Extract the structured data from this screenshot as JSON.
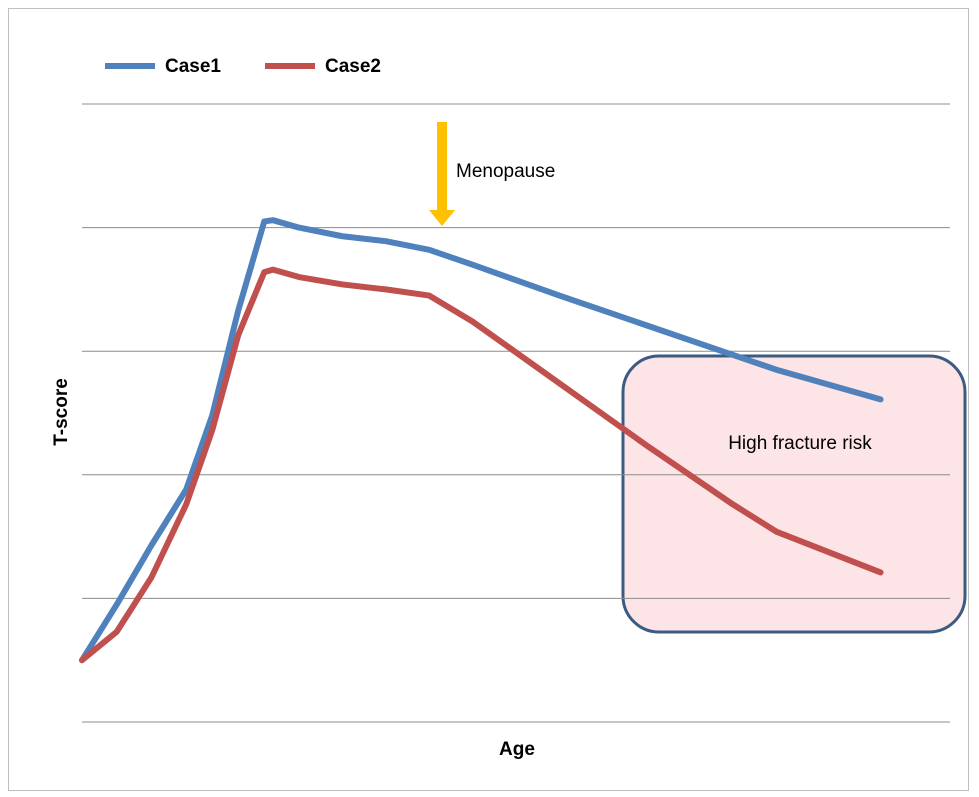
{
  "chart_data": {
    "type": "line",
    "xlabel": "Age",
    "ylabel": "T-score",
    "x": [
      0,
      0.4,
      0.8,
      1.2,
      1.5,
      1.8,
      2.1,
      2.2,
      2.5,
      3,
      3.5,
      4,
      4.5,
      5.5,
      6.5,
      7.5,
      8,
      9.2
    ],
    "series": [
      {
        "name": "Case1",
        "color": "#4f81bd",
        "values": [
          0.5,
          0.95,
          1.43,
          1.88,
          2.48,
          3.33,
          4.05,
          4.06,
          4.0,
          3.93,
          3.89,
          3.82,
          3.7,
          3.45,
          3.21,
          2.97,
          2.85,
          2.61
        ]
      },
      {
        "name": "Case2",
        "color": "#c0504d",
        "values": [
          0.5,
          0.73,
          1.17,
          1.76,
          2.36,
          3.13,
          3.64,
          3.66,
          3.6,
          3.54,
          3.5,
          3.45,
          3.24,
          2.74,
          2.24,
          1.76,
          1.54,
          1.21
        ]
      }
    ],
    "annotations": [
      "Menopause",
      "High fracture risk"
    ],
    "xlim": [
      0,
      10
    ],
    "ylim": [
      0,
      5
    ],
    "yticks": [
      0,
      1,
      2,
      3,
      4,
      5
    ],
    "grid": true,
    "legend": "top-left"
  }
}
